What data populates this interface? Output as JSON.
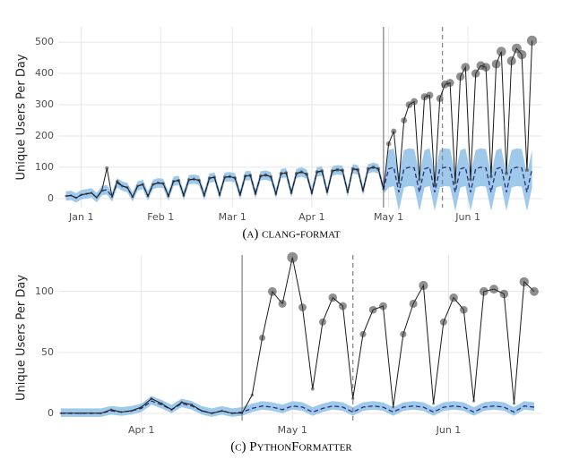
{
  "chart_data": [
    {
      "type": "line",
      "caption": "(a) clang-format",
      "y_label": "Unique Users Per Day",
      "x": [
        -6,
        -4,
        -2,
        0,
        2,
        4,
        6,
        8,
        10,
        12,
        14,
        16,
        18,
        20,
        22,
        24,
        26,
        28,
        30,
        32,
        34,
        36,
        38,
        40,
        42,
        44,
        46,
        48,
        50,
        52,
        54,
        56,
        58,
        60,
        62,
        64,
        66,
        68,
        70,
        72,
        74,
        76,
        78,
        80,
        82,
        84,
        86,
        88,
        90,
        92,
        94,
        96,
        98,
        100,
        102,
        104,
        106,
        108,
        110,
        112,
        114,
        116,
        118,
        120,
        122,
        124,
        126,
        128,
        130,
        132,
        134,
        136,
        138,
        140,
        142,
        144,
        146,
        148,
        150,
        152,
        154,
        156,
        158,
        160,
        162,
        164,
        166,
        168,
        170,
        172,
        174,
        176
      ],
      "xlim": [
        -9,
        180
      ],
      "xticks": [
        {
          "value": 0,
          "label": "Jan 1"
        },
        {
          "value": 31,
          "label": "Feb 1"
        },
        {
          "value": 59,
          "label": "Mar 1"
        },
        {
          "value": 90,
          "label": "Apr 1"
        },
        {
          "value": 120,
          "label": "May 1"
        },
        {
          "value": 151,
          "label": "Jun 1"
        }
      ],
      "ylim": [
        -29,
        549
      ],
      "yticks": [
        0,
        100,
        200,
        300,
        400,
        500
      ],
      "grid": true,
      "vlines": [
        {
          "x": 118,
          "dashed": false
        },
        {
          "x": 141,
          "dashed": true
        }
      ],
      "band": {
        "color": "#9ec9ea",
        "lower": [
          -7,
          -5,
          -13,
          -3,
          0,
          3,
          -12,
          10,
          13,
          -10,
          35,
          25,
          20,
          -10,
          25,
          30,
          -7,
          30,
          35,
          33,
          -7,
          40,
          43,
          -5,
          45,
          47,
          43,
          -5,
          50,
          53,
          -3,
          53,
          55,
          51,
          -3,
          57,
          59,
          0,
          57,
          60,
          55,
          0,
          65,
          67,
          3,
          65,
          70,
          63,
          3,
          70,
          73,
          5,
          73,
          77,
          75,
          5,
          80,
          77,
          10,
          80,
          85,
          80,
          15,
          35,
          40,
          -40,
          35,
          40,
          38,
          -40,
          35,
          40,
          -40,
          35,
          40,
          38,
          -40,
          35,
          40,
          -40,
          35,
          40,
          38,
          -40,
          35,
          40,
          -40,
          35,
          40,
          38,
          -40,
          35
        ],
        "upper": [
          23,
          25,
          17,
          27,
          30,
          33,
          18,
          40,
          43,
          20,
          65,
          55,
          50,
          20,
          55,
          60,
          23,
          60,
          65,
          63,
          23,
          70,
          73,
          25,
          75,
          77,
          73,
          25,
          80,
          83,
          27,
          83,
          85,
          81,
          27,
          87,
          89,
          30,
          87,
          90,
          85,
          30,
          95,
          97,
          33,
          95,
          100,
          93,
          33,
          100,
          103,
          35,
          103,
          107,
          105,
          35,
          110,
          107,
          40,
          110,
          115,
          110,
          45,
          155,
          160,
          80,
          155,
          160,
          158,
          80,
          155,
          160,
          80,
          155,
          160,
          158,
          80,
          155,
          160,
          80,
          155,
          160,
          158,
          80,
          155,
          160,
          80,
          155,
          160,
          158,
          80,
          155
        ]
      },
      "series": [
        {
          "color": "#2b2f7a",
          "dashed": true,
          "values": [
            8,
            10,
            2,
            12,
            15,
            18,
            3,
            25,
            28,
            5,
            50,
            40,
            35,
            5,
            40,
            45,
            8,
            45,
            50,
            48,
            8,
            55,
            58,
            10,
            60,
            62,
            58,
            10,
            65,
            68,
            12,
            68,
            70,
            66,
            12,
            72,
            74,
            15,
            72,
            75,
            70,
            15,
            80,
            82,
            18,
            80,
            85,
            78,
            18,
            85,
            88,
            20,
            88,
            92,
            90,
            20,
            95,
            92,
            25,
            95,
            100,
            95,
            30,
            95,
            100,
            20,
            95,
            100,
            98,
            20,
            95,
            100,
            20,
            95,
            100,
            98,
            20,
            95,
            100,
            20,
            95,
            100,
            98,
            20,
            95,
            100,
            20,
            95,
            100,
            98,
            20,
            95
          ]
        },
        {
          "color": "#1a1a1a",
          "markers": true,
          "values": [
            8,
            10,
            2,
            12,
            15,
            18,
            3,
            25,
            97,
            5,
            55,
            40,
            35,
            5,
            40,
            45,
            8,
            45,
            50,
            48,
            8,
            55,
            58,
            10,
            60,
            62,
            58,
            10,
            65,
            68,
            12,
            68,
            70,
            66,
            12,
            72,
            74,
            15,
            72,
            75,
            70,
            15,
            80,
            82,
            18,
            80,
            85,
            78,
            18,
            85,
            88,
            20,
            88,
            92,
            90,
            20,
            95,
            92,
            25,
            95,
            100,
            95,
            30,
            175,
            215,
            50,
            250,
            300,
            310,
            60,
            325,
            330,
            40,
            320,
            365,
            370,
            50,
            390,
            420,
            60,
            400,
            425,
            420,
            70,
            430,
            470,
            80,
            440,
            480,
            460,
            90,
            505
          ]
        }
      ]
    },
    {
      "type": "line",
      "caption": "(c) PythonFormatter",
      "y_label": "Unique Users Per Day",
      "x": [
        74,
        76,
        78,
        80,
        82,
        84,
        86,
        88,
        90,
        92,
        94,
        96,
        98,
        100,
        102,
        104,
        106,
        108,
        110,
        112,
        114,
        116,
        118,
        120,
        122,
        124,
        126,
        128,
        130,
        132,
        134,
        136,
        138,
        140,
        142,
        144,
        146,
        148,
        150,
        152,
        154,
        156,
        158,
        160,
        162,
        164,
        166,
        168
      ],
      "xlim": [
        73.5,
        169.6
      ],
      "xticks": [
        {
          "value": 90,
          "label": "Apr 1"
        },
        {
          "value": 120,
          "label": "May 1"
        },
        {
          "value": 151,
          "label": "Jun 1"
        }
      ],
      "ylim": [
        -6,
        130
      ],
      "yticks": [
        0,
        50,
        100
      ],
      "grid": true,
      "vlines": [
        {
          "x": 110,
          "dashed": false
        },
        {
          "x": 132,
          "dashed": true
        }
      ],
      "band": {
        "color": "#9ec9ea",
        "lower": [
          -3,
          -3,
          -3,
          -3,
          -3,
          -1,
          -2,
          -1,
          1,
          7,
          4,
          0,
          5,
          3,
          -1,
          -3,
          -1,
          -3,
          -2,
          1,
          3,
          2,
          0,
          3,
          2,
          -2,
          1,
          3,
          2,
          -2,
          2,
          3,
          2,
          -2,
          2,
          3,
          2,
          -2,
          2,
          3,
          2,
          -2,
          2,
          3,
          2,
          -2,
          3,
          2
        ],
        "upper": [
          4,
          4,
          4,
          4,
          4,
          6,
          5,
          6,
          8,
          14,
          11,
          7,
          12,
          10,
          6,
          4,
          6,
          4,
          5,
          8,
          10,
          9,
          7,
          10,
          9,
          5,
          8,
          10,
          9,
          5,
          9,
          10,
          9,
          5,
          9,
          10,
          9,
          5,
          9,
          10,
          9,
          5,
          9,
          10,
          9,
          5,
          10,
          9
        ]
      },
      "series": [
        {
          "color": "#2b2f7a",
          "dashed": true,
          "values": [
            0,
            0,
            0,
            0,
            0,
            2,
            1,
            2,
            4,
            10,
            7,
            3,
            8,
            6,
            2,
            0,
            2,
            0,
            1,
            4,
            6,
            5,
            3,
            6,
            5,
            1,
            4,
            6,
            5,
            1,
            5,
            6,
            5,
            1,
            5,
            6,
            5,
            1,
            5,
            6,
            5,
            1,
            5,
            6,
            5,
            1,
            6,
            5
          ]
        },
        {
          "color": "#1a1a1a",
          "markers": true,
          "values": [
            0,
            0,
            0,
            0,
            0,
            3,
            1,
            2,
            5,
            12,
            8,
            3,
            9,
            7,
            2,
            0,
            2,
            0,
            0,
            15,
            62,
            100,
            90,
            128,
            87,
            20,
            75,
            95,
            88,
            12,
            65,
            85,
            88,
            5,
            65,
            90,
            105,
            8,
            75,
            95,
            85,
            10,
            100,
            102,
            98,
            8,
            108,
            100
          ]
        }
      ]
    }
  ]
}
